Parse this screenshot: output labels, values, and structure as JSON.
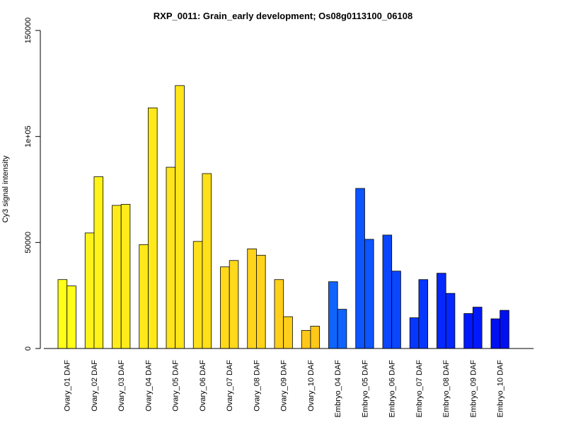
{
  "chart_data": {
    "type": "bar",
    "title": "RXP_0011: Grain_early development; Os08g0113100_06108",
    "xlabel": "",
    "ylabel": "Cy3 signal intensity",
    "ylim": [
      0,
      150000
    ],
    "yticks": [
      {
        "value": 0,
        "label": "0"
      },
      {
        "value": 50000,
        "label": "50000"
      },
      {
        "value": 100000,
        "label": "1e+05"
      },
      {
        "value": 150000,
        "label": "150000"
      }
    ],
    "grid": false,
    "legend": "none",
    "categories": [
      "Ovary_01 DAF",
      "Ovary_02 DAF",
      "Ovary_03 DAF",
      "Ovary_04 DAF",
      "Ovary_05 DAF",
      "Ovary_06 DAF",
      "Ovary_07 DAF",
      "Ovary_08 DAF",
      "Ovary_09 DAF",
      "Ovary_10 DAF",
      "Embryo_04 DAF",
      "Embryo_05 DAF",
      "Embryo_06 DAF",
      "Embryo_07 DAF",
      "Embryo_08 DAF",
      "Embryo_09 DAF",
      "Embryo_10 DAF"
    ],
    "colors": [
      "#ffff1a",
      "#fff31a",
      "#ffec1a",
      "#ffe91a",
      "#ffe51a",
      "#ffe01a",
      "#ffd91a",
      "#ffd41a",
      "#ffcf1a",
      "#ffc81a",
      "#0f64ff",
      "#0d55ff",
      "#0a46ff",
      "#0737ff",
      "#0528ff",
      "#0219ff",
      "#000ff0"
    ],
    "series": [
      {
        "values": [
          32500,
          54500,
          67500,
          49000,
          85500,
          50500,
          38500,
          47000,
          32500,
          8500,
          31500,
          75500,
          53500,
          14500,
          35500,
          16500,
          14000
        ]
      },
      {
        "values": [
          29500,
          81000,
          68000,
          113500,
          124000,
          82500,
          41500,
          44000,
          15000,
          10500,
          18500,
          51500,
          36500,
          32500,
          26000,
          19500,
          18000
        ]
      }
    ]
  }
}
